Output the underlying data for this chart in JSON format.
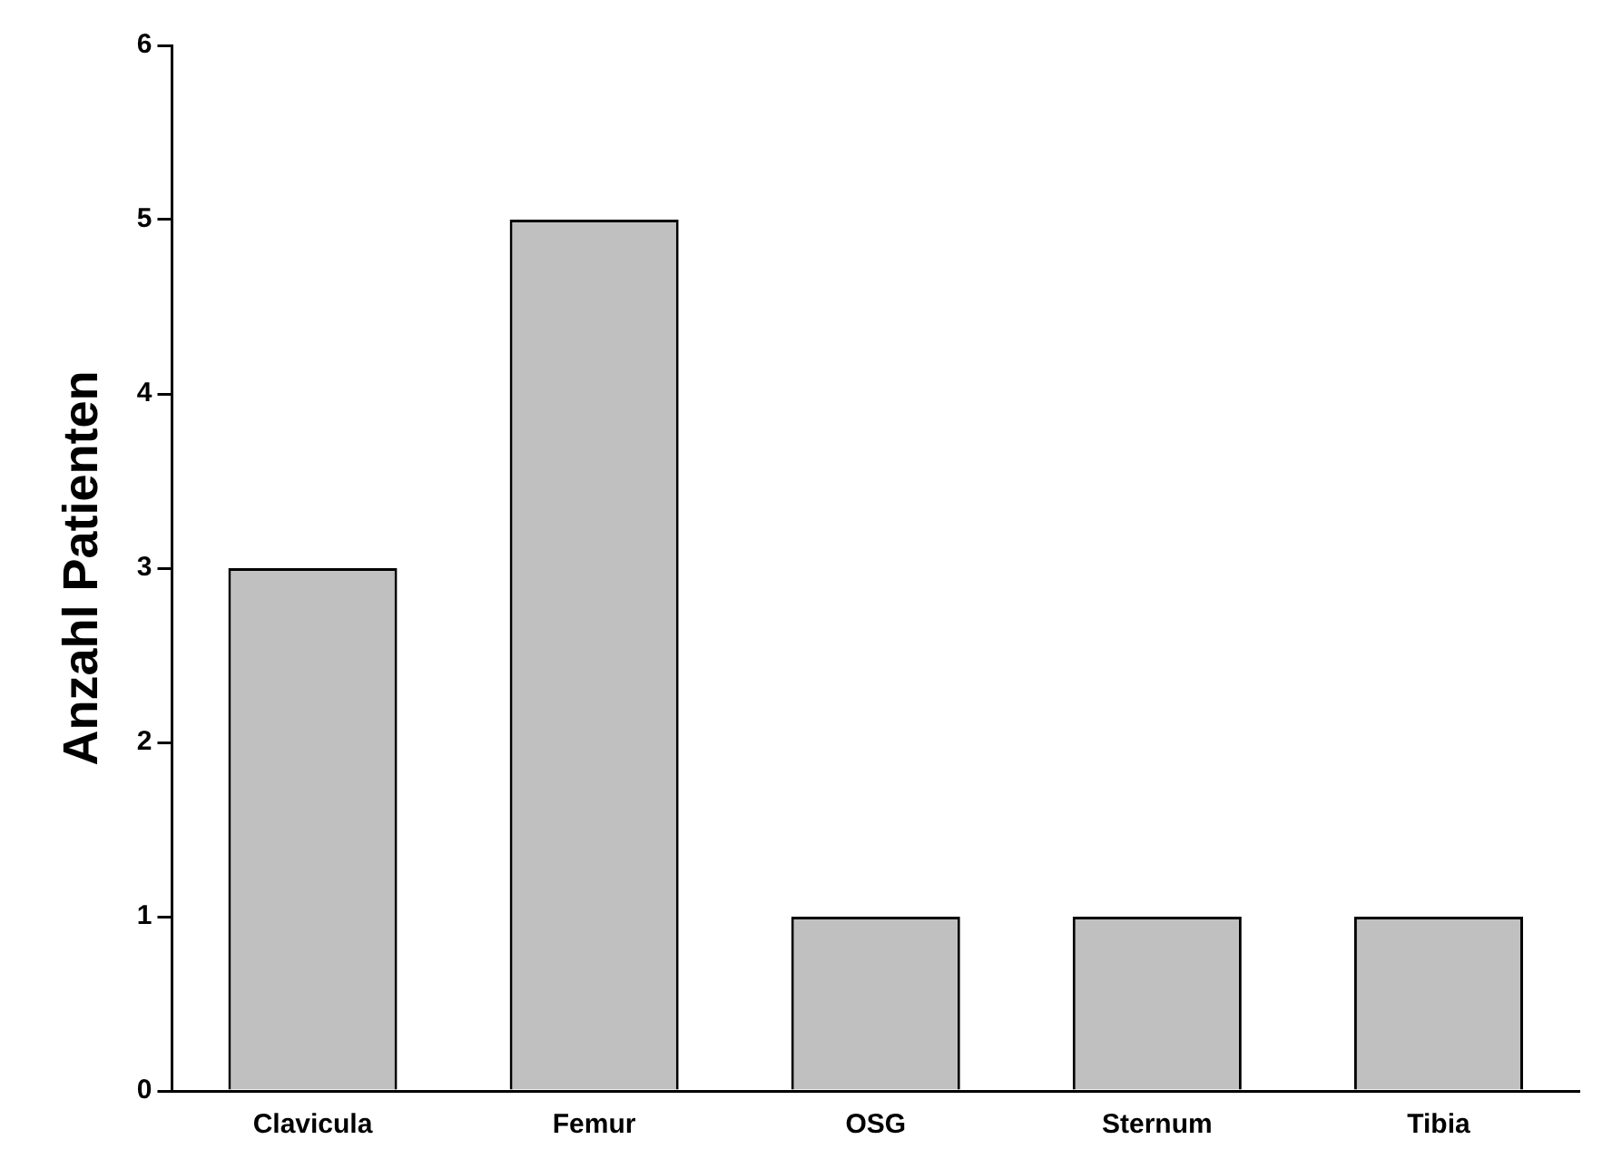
{
  "chart_data": {
    "type": "bar",
    "ylabel": "Anzahl Patienten",
    "categories": [
      "Clavicula",
      "Femur",
      "OSG",
      "Sternum",
      "Tibia"
    ],
    "values": [
      3,
      5,
      1,
      1,
      1
    ],
    "color": "#c0c0c0",
    "ylim": [
      0,
      6
    ],
    "yticks": [
      0,
      1,
      2,
      3,
      4,
      5,
      6
    ],
    "grid": false,
    "legend": false
  }
}
